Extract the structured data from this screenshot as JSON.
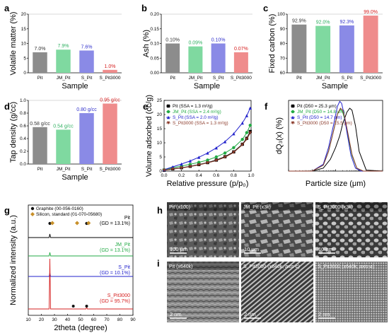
{
  "panels": {
    "a": {
      "letter": "a"
    },
    "b": {
      "letter": "b"
    },
    "c": {
      "letter": "c"
    },
    "d": {
      "letter": "d"
    },
    "e": {
      "letter": "e"
    },
    "f": {
      "letter": "f"
    },
    "g": {
      "letter": "g"
    },
    "h": {
      "letter": "h"
    },
    "i": {
      "letter": "i"
    }
  },
  "chart_data": [
    {
      "panel": "a",
      "type": "bar",
      "categories": [
        "Pit",
        "JM_Pit",
        "S_Pit",
        "S_Pit3000"
      ],
      "values": [
        7.0,
        7.9,
        7.6,
        1.0
      ],
      "value_labels": [
        "7.0%",
        "7.9%",
        "7.6%",
        "1.0%"
      ],
      "colors": [
        "#8c8c8c",
        "#7fd9a0",
        "#8a8ae6",
        "#ef8c8c"
      ],
      "label_colors": [
        "#333333",
        "#2fb060",
        "#3333cc",
        "#d62020"
      ],
      "ylim": [
        0,
        20
      ],
      "yticks": [
        0,
        5,
        10,
        15,
        20
      ],
      "xlabel": "Sample",
      "ylabel": "Volatile matter (%)"
    },
    {
      "panel": "b",
      "type": "bar",
      "categories": [
        "Pit",
        "JM_Pit",
        "S_Pit",
        "S_Pit3000"
      ],
      "values": [
        0.1,
        0.09,
        0.1,
        0.07
      ],
      "value_labels": [
        "0.10%",
        "0.09%",
        "0.10%",
        "0.07%"
      ],
      "colors": [
        "#8c8c8c",
        "#7fd9a0",
        "#8a8ae6",
        "#ef8c8c"
      ],
      "label_colors": [
        "#333333",
        "#2fb060",
        "#3333cc",
        "#d62020"
      ],
      "ylim": [
        0,
        0.2
      ],
      "yticks": [
        0.0,
        0.05,
        0.1,
        0.15,
        0.2
      ],
      "xlabel": "Sample",
      "ylabel": "Ash (%)"
    },
    {
      "panel": "c",
      "type": "bar",
      "categories": [
        "Pit",
        "JM_Pit",
        "S_Pit",
        "S_Pit3000"
      ],
      "values": [
        92.9,
        92.0,
        92.3,
        99.0
      ],
      "value_labels": [
        "92.9%",
        "92.0%",
        "92.3%",
        "99.0%"
      ],
      "colors": [
        "#8c8c8c",
        "#7fd9a0",
        "#8a8ae6",
        "#ef8c8c"
      ],
      "label_colors": [
        "#333333",
        "#2fb060",
        "#3333cc",
        "#d62020"
      ],
      "ylim": [
        60,
        100
      ],
      "yticks": [
        60,
        70,
        80,
        90,
        100
      ],
      "xlabel": "Sample",
      "ylabel": "Fixed carbon (%)"
    },
    {
      "panel": "d",
      "type": "bar",
      "categories": [
        "Pit",
        "JM_Pit",
        "S_Pit",
        "S_Pit3000"
      ],
      "values": [
        0.58,
        0.54,
        0.8,
        0.95
      ],
      "value_labels": [
        "0.58 g/cc",
        "0.54 g/cc",
        "0.80 g/cc",
        "0.95 g/cc"
      ],
      "colors": [
        "#8c8c8c",
        "#7fd9a0",
        "#8a8ae6",
        "#ef8c8c"
      ],
      "label_colors": [
        "#333333",
        "#2fb060",
        "#3333cc",
        "#d62020"
      ],
      "ylim": [
        0,
        1.0
      ],
      "yticks": [
        0.0,
        0.2,
        0.4,
        0.6,
        0.8,
        1.0
      ],
      "xlabel": "Sample",
      "ylabel": "Tap density (g/cc)"
    },
    {
      "panel": "e",
      "type": "line",
      "xlabel": "Relative pressure (p/p₀)",
      "ylabel": "Volume adsorbed (cc/g)",
      "xlim": [
        0.0,
        1.0
      ],
      "ylim": [
        0,
        25
      ],
      "xticks": [
        0.0,
        0.2,
        0.4,
        0.6,
        0.8,
        1.0
      ],
      "yticks": [
        0,
        5,
        10,
        15,
        20,
        25
      ],
      "series": [
        {
          "name": "Pit (SSA = 1.3 m²/g)",
          "color": "#000000",
          "marker": "square",
          "x": [
            0.0,
            0.1,
            0.2,
            0.3,
            0.4,
            0.5,
            0.6,
            0.7,
            0.8,
            0.9,
            0.95,
            0.99
          ],
          "y": [
            0.3,
            0.8,
            1.2,
            1.7,
            2.3,
            3.0,
            3.9,
            5.1,
            6.8,
            9.5,
            11.6,
            14.0
          ]
        },
        {
          "name": "JM_Pit (SSA = 2.4 m²/g)",
          "color": "#22aa44",
          "marker": "circle",
          "x": [
            0.0,
            0.1,
            0.2,
            0.3,
            0.4,
            0.5,
            0.6,
            0.7,
            0.8,
            0.9,
            0.95,
            0.99
          ],
          "y": [
            0.5,
            1.2,
            1.8,
            2.4,
            3.1,
            3.9,
            5.0,
            6.4,
            8.3,
            11.2,
            13.6,
            16.2
          ]
        },
        {
          "name": "S_Pit (SSA = 2.0 m²/g)",
          "color": "#2222cc",
          "marker": "triangle",
          "x": [
            0.0,
            0.1,
            0.2,
            0.3,
            0.4,
            0.5,
            0.6,
            0.7,
            0.8,
            0.9,
            0.95,
            0.99
          ],
          "y": [
            0.5,
            1.5,
            2.5,
            3.6,
            4.9,
            6.4,
            8.2,
            10.4,
            13.2,
            17.0,
            19.6,
            22.3
          ]
        },
        {
          "name": "S_Pit3000 (SSA = 1.3 m²/g)",
          "color": "#8b3a2a",
          "marker": "triangle-down",
          "x": [
            0.0,
            0.1,
            0.2,
            0.3,
            0.4,
            0.5,
            0.6,
            0.7,
            0.8,
            0.9,
            0.95,
            0.99
          ],
          "y": [
            0.3,
            0.7,
            1.1,
            1.6,
            2.2,
            2.9,
            3.7,
            4.9,
            6.6,
            9.3,
            11.3,
            13.5
          ]
        }
      ]
    },
    {
      "panel": "f",
      "type": "line",
      "x_scale": "log",
      "xlabel": "Particle size (μm)",
      "ylabel": "dQ₃(x) (%)",
      "xlim": [
        0.1,
        1000
      ],
      "xticks": [
        0.1,
        1,
        10,
        100,
        1000
      ],
      "ylim": [
        0,
        3.6
      ],
      "series": [
        {
          "name": "Pit (D50 = 25.3 μm)",
          "color": "#000000",
          "marker": "square",
          "x": [
            0.1,
            1,
            3,
            6,
            10,
            15,
            20,
            30,
            40,
            50,
            70,
            100,
            200,
            1000
          ],
          "y": [
            0.0,
            0.0,
            0.15,
            0.6,
            1.2,
            1.8,
            2.4,
            3.0,
            3.2,
            3.1,
            2.3,
            1.0,
            0.05,
            0.0
          ]
        },
        {
          "name": "JM_Pit (D50 = 14.8 μm)",
          "color": "#22aa44",
          "marker": "circle",
          "x": [
            0.1,
            1,
            3,
            5,
            8,
            12,
            16,
            20,
            25,
            35,
            50,
            80,
            150,
            1000
          ],
          "y": [
            0.0,
            0.0,
            0.3,
            1.0,
            2.0,
            2.9,
            3.15,
            3.0,
            2.6,
            1.7,
            0.8,
            0.15,
            0.0,
            0.0
          ]
        },
        {
          "name": "S_Pit (D50 = 14.7 μm)",
          "color": "#2222cc",
          "marker": "triangle",
          "x": [
            0.1,
            1,
            3,
            5,
            8,
            12,
            15,
            18,
            22,
            30,
            45,
            70,
            120,
            1000
          ],
          "y": [
            0.0,
            0.0,
            0.35,
            1.2,
            2.3,
            3.3,
            3.55,
            3.45,
            3.0,
            2.0,
            0.8,
            0.15,
            0.0,
            0.0
          ]
        },
        {
          "name": "S_Pit3000 (D50 = 15.5 μm)",
          "color": "#8b3a2a",
          "marker": "triangle-down",
          "x": [
            0.1,
            1,
            3,
            5,
            8,
            12,
            16,
            20,
            25,
            35,
            50,
            80,
            150,
            1000
          ],
          "y": [
            0.0,
            0.0,
            0.3,
            1.0,
            2.0,
            2.9,
            3.2,
            3.1,
            2.7,
            1.8,
            0.85,
            0.15,
            0.0,
            0.0
          ]
        }
      ]
    },
    {
      "panel": "g",
      "type": "line",
      "xlabel": "2theta (degree)",
      "ylabel": "Normalized intensity (a.u.)",
      "xlim": [
        10,
        90
      ],
      "xticks": [
        10,
        20,
        30,
        40,
        50,
        60,
        70,
        80,
        90
      ],
      "legend": [
        "Graphite (00-056-0160)",
        "Silicon, standard (01-070-05680)"
      ],
      "reference_markers": [
        {
          "symbol": "circle",
          "color": "#111111",
          "x": [
            26.5,
            54.6
          ]
        },
        {
          "symbol": "diamond",
          "color": "#c8902a",
          "x": [
            28.4,
            47.3,
            56.1
          ]
        }
      ],
      "series": [
        {
          "name": "Pit",
          "note": "(GD = 13.1%)",
          "color": "#000000",
          "peaks": [
            {
              "x": 26.5,
              "h": 0.08
            }
          ]
        },
        {
          "name": "JM_Pit",
          "note": "(GD = 13.1%)",
          "color": "#22aa44",
          "peaks": [
            {
              "x": 26.5,
              "h": 0.08
            }
          ]
        },
        {
          "name": "S_Pit",
          "note": "(GD = 10.1%)",
          "color": "#2222cc",
          "peaks": [
            {
              "x": 26.5,
              "h": 0.08
            }
          ]
        },
        {
          "name": "S_Pit3000",
          "note": "(GD = 95.7%)",
          "color": "#d62020",
          "peaks": [
            {
              "x": 26.5,
              "h": 1.0
            },
            {
              "x": 54.6,
              "h": 0.02
            }
          ]
        }
      ]
    }
  ],
  "micrographs": {
    "h": [
      {
        "label": "Pit (x100)",
        "scale": "100 μm"
      },
      {
        "label": "JM_Pit (x3k)",
        "scale": "10 μm"
      },
      {
        "label": "S_Pit3000 (x3k)",
        "scale": "10 μm"
      }
    ],
    "i": [
      {
        "label": "Pit (x640k)",
        "scale": "2 nm"
      },
      {
        "label": "S_Pit3000 (x640k, axis-c)",
        "label_plain": "S_Pit3000 (x640k, ",
        "label_italic": "axis-c",
        "label_close": ")",
        "scale": "2 nm"
      },
      {
        "label": "S_Pit3000 (x640k, axis-a)",
        "label_plain": "S_Pit3000 (x640k, ",
        "label_italic": "axis-a",
        "label_close": ")",
        "scale": "2 nm"
      }
    ]
  }
}
